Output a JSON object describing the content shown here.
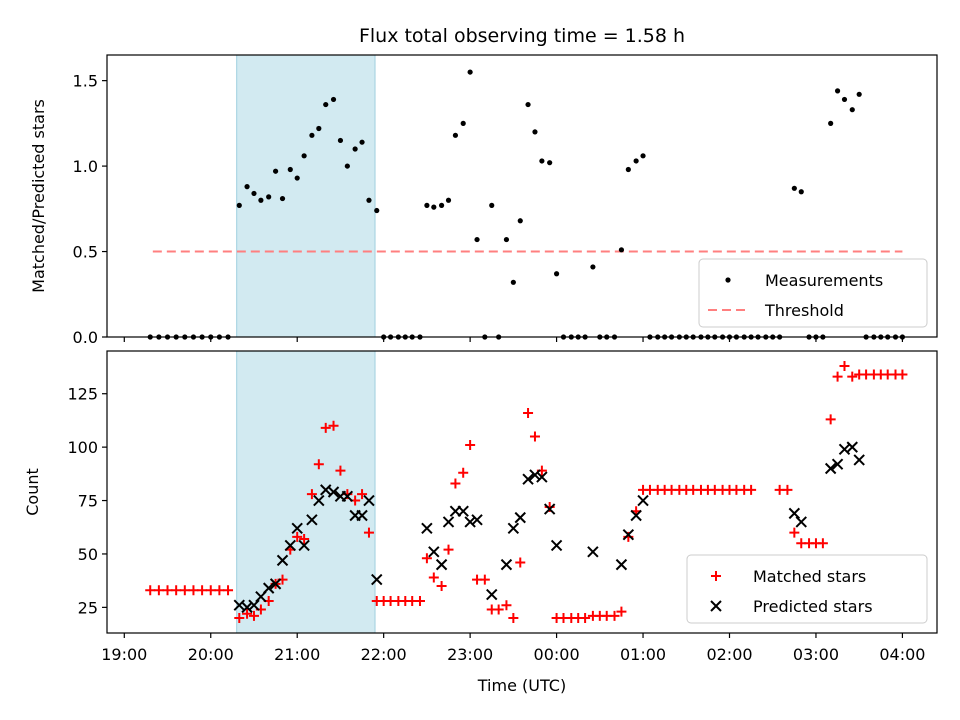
{
  "chart_data": [
    {
      "type": "scatter",
      "title": "Flux total observing time = 1.58 h",
      "ylabel": "Matched/Predicted stars",
      "xlabel": "",
      "x_unit": "hours, UTC clock (24+ = after midnight)",
      "xlim": [
        18.8,
        28.4
      ],
      "ylim": [
        0,
        1.65
      ],
      "yticks": [
        "0.0",
        "0.5",
        "1.0",
        "1.5"
      ],
      "shaded_span": [
        20.3,
        21.9
      ],
      "shaded_color": "#add8e6",
      "threshold": {
        "name": "Threshold",
        "y": 0.5,
        "x": [
          19.33,
          24.0
        ],
        "x_end": 28.0,
        "color": "#ff7f7f"
      },
      "series": [
        {
          "name": "Measurements",
          "color": "#000000",
          "points": [
            [
              19.3,
              0
            ],
            [
              19.4,
              0
            ],
            [
              19.5,
              0
            ],
            [
              19.6,
              0
            ],
            [
              19.7,
              0
            ],
            [
              19.8,
              0
            ],
            [
              19.9,
              0
            ],
            [
              20.0,
              0
            ],
            [
              20.1,
              0
            ],
            [
              20.2,
              0
            ],
            [
              20.33,
              0.77
            ],
            [
              20.42,
              0.88
            ],
            [
              20.5,
              0.84
            ],
            [
              20.58,
              0.8
            ],
            [
              20.67,
              0.82
            ],
            [
              20.75,
              0.97
            ],
            [
              20.83,
              0.81
            ],
            [
              20.92,
              0.98
            ],
            [
              21.0,
              0.93
            ],
            [
              21.08,
              1.06
            ],
            [
              21.17,
              1.18
            ],
            [
              21.25,
              1.22
            ],
            [
              21.33,
              1.36
            ],
            [
              21.42,
              1.39
            ],
            [
              21.5,
              1.15
            ],
            [
              21.58,
              1.0
            ],
            [
              21.67,
              1.1
            ],
            [
              21.75,
              1.14
            ],
            [
              21.83,
              0.8
            ],
            [
              21.92,
              0.74
            ],
            [
              22.0,
              0
            ],
            [
              22.08,
              0
            ],
            [
              22.17,
              0
            ],
            [
              22.25,
              0
            ],
            [
              22.33,
              0
            ],
            [
              22.42,
              0
            ],
            [
              22.5,
              0.77
            ],
            [
              22.58,
              0.76
            ],
            [
              22.67,
              0.77
            ],
            [
              22.75,
              0.8
            ],
            [
              22.83,
              1.18
            ],
            [
              22.92,
              1.25
            ],
            [
              23.0,
              1.55
            ],
            [
              23.08,
              0.57
            ],
            [
              23.17,
              0
            ],
            [
              23.25,
              0.77
            ],
            [
              23.33,
              0
            ],
            [
              23.42,
              0.57
            ],
            [
              23.5,
              0.32
            ],
            [
              23.58,
              0.68
            ],
            [
              23.67,
              1.36
            ],
            [
              23.75,
              1.2
            ],
            [
              23.83,
              1.03
            ],
            [
              23.92,
              1.02
            ],
            [
              24.0,
              0.37
            ],
            [
              24.08,
              0
            ],
            [
              24.17,
              0
            ],
            [
              24.25,
              0
            ],
            [
              24.33,
              0
            ],
            [
              24.42,
              0.41
            ],
            [
              24.5,
              0
            ],
            [
              24.58,
              0
            ],
            [
              24.67,
              0
            ],
            [
              24.75,
              0.51
            ],
            [
              24.83,
              0.98
            ],
            [
              24.92,
              1.03
            ],
            [
              25.0,
              1.06
            ],
            [
              25.08,
              0
            ],
            [
              25.17,
              0
            ],
            [
              25.25,
              0
            ],
            [
              25.33,
              0
            ],
            [
              25.42,
              0
            ],
            [
              25.5,
              0
            ],
            [
              25.58,
              0
            ],
            [
              25.67,
              0
            ],
            [
              25.75,
              0
            ],
            [
              25.83,
              0
            ],
            [
              25.92,
              0
            ],
            [
              26.0,
              0
            ],
            [
              26.08,
              0
            ],
            [
              26.17,
              0
            ],
            [
              26.25,
              0
            ],
            [
              26.33,
              0
            ],
            [
              26.42,
              0
            ],
            [
              26.5,
              0
            ],
            [
              26.58,
              0
            ],
            [
              26.75,
              0.87
            ],
            [
              26.83,
              0.85
            ],
            [
              26.92,
              0
            ],
            [
              27.0,
              0
            ],
            [
              27.08,
              0
            ],
            [
              27.17,
              1.25
            ],
            [
              27.25,
              1.44
            ],
            [
              27.33,
              1.39
            ],
            [
              27.42,
              1.33
            ],
            [
              27.5,
              1.42
            ],
            [
              27.58,
              0
            ],
            [
              27.67,
              0
            ],
            [
              27.75,
              0
            ],
            [
              27.83,
              0
            ],
            [
              27.92,
              0
            ],
            [
              28.0,
              0
            ]
          ]
        }
      ],
      "legend": {
        "placement": "lower-right",
        "entries": [
          "Measurements",
          "Threshold"
        ]
      }
    },
    {
      "type": "scatter",
      "title": "",
      "xlabel": "Time (UTC)",
      "ylabel": "Count",
      "xlim": [
        18.8,
        28.4
      ],
      "ylim": [
        13,
        145
      ],
      "yticks": [
        "25",
        "50",
        "75",
        "100",
        "125"
      ],
      "xticks": [
        "19:00",
        "20:00",
        "21:00",
        "22:00",
        "23:00",
        "00:00",
        "01:00",
        "02:00",
        "03:00",
        "04:00"
      ],
      "shaded_span": [
        20.3,
        21.9
      ],
      "shaded_color": "#add8e6",
      "series": [
        {
          "name": "Matched stars",
          "marker": "plus",
          "color": "#ff0000",
          "points": [
            [
              19.3,
              33
            ],
            [
              19.4,
              33
            ],
            [
              19.5,
              33
            ],
            [
              19.6,
              33
            ],
            [
              19.7,
              33
            ],
            [
              19.8,
              33
            ],
            [
              19.9,
              33
            ],
            [
              20.0,
              33
            ],
            [
              20.1,
              33
            ],
            [
              20.2,
              33
            ],
            [
              20.33,
              20
            ],
            [
              20.42,
              22
            ],
            [
              20.5,
              21
            ],
            [
              20.58,
              24
            ],
            [
              20.67,
              28
            ],
            [
              20.75,
              36
            ],
            [
              20.83,
              38
            ],
            [
              20.92,
              52
            ],
            [
              21.0,
              58
            ],
            [
              21.08,
              57
            ],
            [
              21.17,
              78
            ],
            [
              21.25,
              92
            ],
            [
              21.33,
              109
            ],
            [
              21.42,
              110
            ],
            [
              21.5,
              89
            ],
            [
              21.58,
              78
            ],
            [
              21.67,
              75
            ],
            [
              21.75,
              78
            ],
            [
              21.83,
              60
            ],
            [
              21.92,
              28
            ],
            [
              22.0,
              28
            ],
            [
              22.08,
              28
            ],
            [
              22.17,
              28
            ],
            [
              22.25,
              28
            ],
            [
              22.33,
              28
            ],
            [
              22.42,
              28
            ],
            [
              22.5,
              48
            ],
            [
              22.58,
              39
            ],
            [
              22.67,
              35
            ],
            [
              22.75,
              52
            ],
            [
              22.83,
              83
            ],
            [
              22.92,
              88
            ],
            [
              23.0,
              101
            ],
            [
              23.08,
              38
            ],
            [
              23.17,
              38
            ],
            [
              23.25,
              24
            ],
            [
              23.33,
              24
            ],
            [
              23.42,
              26
            ],
            [
              23.5,
              20
            ],
            [
              23.58,
              46
            ],
            [
              23.67,
              116
            ],
            [
              23.75,
              105
            ],
            [
              23.83,
              89
            ],
            [
              23.92,
              72
            ],
            [
              24.0,
              20
            ],
            [
              24.08,
              20
            ],
            [
              24.17,
              20
            ],
            [
              24.25,
              20
            ],
            [
              24.33,
              20
            ],
            [
              24.42,
              21
            ],
            [
              24.5,
              21
            ],
            [
              24.58,
              21
            ],
            [
              24.67,
              21
            ],
            [
              24.75,
              23
            ],
            [
              24.83,
              58
            ],
            [
              24.92,
              70
            ],
            [
              25.0,
              80
            ],
            [
              25.08,
              80
            ],
            [
              25.17,
              80
            ],
            [
              25.25,
              80
            ],
            [
              25.33,
              80
            ],
            [
              25.42,
              80
            ],
            [
              25.5,
              80
            ],
            [
              25.58,
              80
            ],
            [
              25.67,
              80
            ],
            [
              25.75,
              80
            ],
            [
              25.83,
              80
            ],
            [
              25.92,
              80
            ],
            [
              26.0,
              80
            ],
            [
              26.08,
              80
            ],
            [
              26.17,
              80
            ],
            [
              26.25,
              80
            ],
            [
              26.58,
              80
            ],
            [
              26.67,
              80
            ],
            [
              26.75,
              60
            ],
            [
              26.83,
              55
            ],
            [
              26.92,
              55
            ],
            [
              27.0,
              55
            ],
            [
              27.08,
              55
            ],
            [
              27.17,
              113
            ],
            [
              27.25,
              133
            ],
            [
              27.33,
              138
            ],
            [
              27.42,
              133
            ],
            [
              27.5,
              134
            ],
            [
              27.58,
              134
            ],
            [
              27.67,
              134
            ],
            [
              27.75,
              134
            ],
            [
              27.83,
              134
            ],
            [
              27.92,
              134
            ],
            [
              28.0,
              134
            ]
          ]
        },
        {
          "name": "Predicted stars",
          "marker": "x",
          "color": "#000000",
          "points": [
            [
              20.33,
              26
            ],
            [
              20.42,
              25
            ],
            [
              20.5,
              26
            ],
            [
              20.58,
              30
            ],
            [
              20.67,
              34
            ],
            [
              20.75,
              36
            ],
            [
              20.83,
              47
            ],
            [
              20.92,
              54
            ],
            [
              21.0,
              62
            ],
            [
              21.08,
              54
            ],
            [
              21.17,
              66
            ],
            [
              21.25,
              75
            ],
            [
              21.33,
              80
            ],
            [
              21.42,
              79
            ],
            [
              21.5,
              77
            ],
            [
              21.58,
              77
            ],
            [
              21.67,
              68
            ],
            [
              21.75,
              68
            ],
            [
              21.83,
              75
            ],
            [
              21.92,
              38
            ],
            [
              22.5,
              62
            ],
            [
              22.58,
              51
            ],
            [
              22.67,
              45
            ],
            [
              22.75,
              65
            ],
            [
              22.83,
              70
            ],
            [
              22.92,
              70
            ],
            [
              23.0,
              65
            ],
            [
              23.08,
              66
            ],
            [
              23.25,
              31
            ],
            [
              23.42,
              45
            ],
            [
              23.5,
              62
            ],
            [
              23.58,
              67
            ],
            [
              23.67,
              85
            ],
            [
              23.75,
              87
            ],
            [
              23.83,
              86
            ],
            [
              23.92,
              71
            ],
            [
              24.0,
              54
            ],
            [
              24.42,
              51
            ],
            [
              24.75,
              45
            ],
            [
              24.83,
              59
            ],
            [
              24.92,
              68
            ],
            [
              25.0,
              75
            ],
            [
              26.75,
              69
            ],
            [
              26.83,
              65
            ],
            [
              27.17,
              90
            ],
            [
              27.25,
              92
            ],
            [
              27.33,
              99
            ],
            [
              27.42,
              100
            ],
            [
              27.5,
              94
            ]
          ]
        }
      ],
      "legend": {
        "placement": "lower-right",
        "entries": [
          "Matched stars",
          "Predicted stars"
        ]
      }
    }
  ]
}
